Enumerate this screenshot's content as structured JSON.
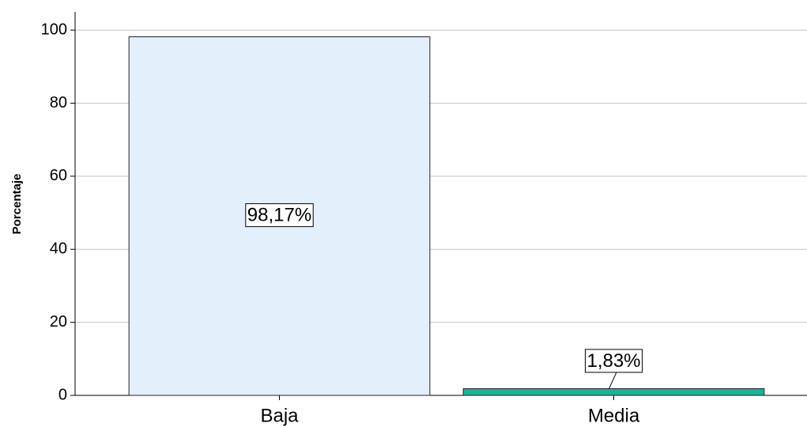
{
  "chart_data": {
    "type": "bar",
    "y_label": "Porcentaje",
    "categories": [
      "Baja",
      "Media"
    ],
    "values": [
      98.17,
      1.83
    ],
    "value_labels": [
      "98,17%",
      "1,83%"
    ],
    "colors": [
      "#e4effc",
      "#1ab396"
    ],
    "ylim": [
      0,
      105
    ],
    "yticks": [
      0,
      20,
      40,
      60,
      80,
      100
    ],
    "grid": true
  }
}
